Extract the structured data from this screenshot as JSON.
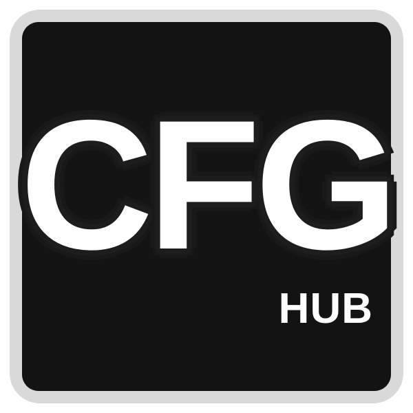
{
  "logo": {
    "main_text": "CFG",
    "sub_text": "HUB"
  },
  "colors": {
    "frame": "#d9d9d9",
    "tile": "#131313",
    "text": "#ffffff"
  }
}
